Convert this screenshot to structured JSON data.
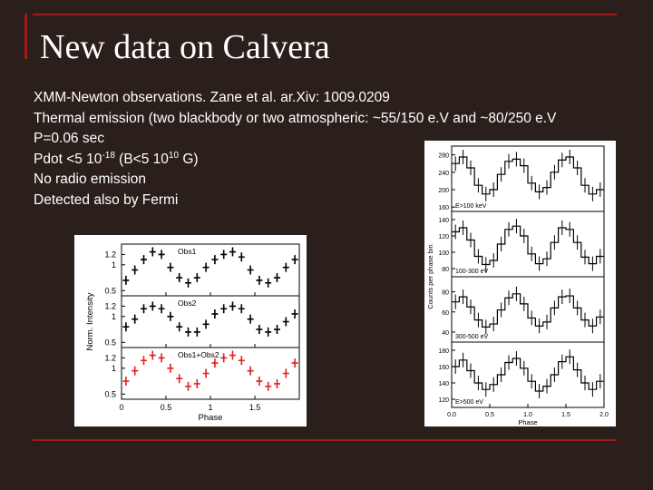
{
  "slide": {
    "title": "New data on Calvera",
    "lines": {
      "l1": "XMM-Newton observations. Zane et al. ar.Xiv: 1009.0209",
      "l2": "Thermal emission (two blackbody or two atmospheric: ~55/150 e.V and ~80/250 e.V",
      "l3": "P=0.06 sec",
      "l4_a": "Pdot <5 10",
      "l4_exp1": "-18",
      "l4_b": " (B<5 10",
      "l4_exp2": "10",
      "l4_c": " G)",
      "l5": "No radio emission",
      "l6": "Detected also by Fermi"
    }
  },
  "colors": {
    "background": "#2a1f1b",
    "accent_rule": "#a11a1a",
    "text": "#ffffff",
    "red_series": "#e02020"
  },
  "chart_data": [
    {
      "type": "scatter",
      "panels": [
        {
          "label": "Obs1",
          "color": "#000000",
          "x": [
            0.05,
            0.15,
            0.25,
            0.35,
            0.45,
            0.55,
            0.65,
            0.75,
            0.85,
            0.95,
            1.05,
            1.15,
            1.25,
            1.35,
            1.45,
            1.55,
            1.65,
            1.75,
            1.85,
            1.95
          ],
          "y": [
            0.7,
            0.9,
            1.1,
            1.25,
            1.2,
            0.95,
            0.75,
            0.65,
            0.75,
            0.95,
            1.1,
            1.2,
            1.25,
            1.15,
            0.9,
            0.7,
            0.65,
            0.75,
            0.95,
            1.1
          ]
        },
        {
          "label": "Obs2",
          "color": "#000000",
          "x": [
            0.05,
            0.15,
            0.25,
            0.35,
            0.45,
            0.55,
            0.65,
            0.75,
            0.85,
            0.95,
            1.05,
            1.15,
            1.25,
            1.35,
            1.45,
            1.55,
            1.65,
            1.75,
            1.85,
            1.95
          ],
          "y": [
            0.8,
            0.95,
            1.15,
            1.2,
            1.15,
            1.0,
            0.8,
            0.7,
            0.7,
            0.85,
            1.05,
            1.15,
            1.2,
            1.15,
            0.95,
            0.75,
            0.7,
            0.75,
            0.9,
            1.05
          ]
        },
        {
          "label": "Obs1+Obs2",
          "color": "#e02020",
          "x": [
            0.05,
            0.15,
            0.25,
            0.35,
            0.45,
            0.55,
            0.65,
            0.75,
            0.85,
            0.95,
            1.05,
            1.15,
            1.25,
            1.35,
            1.45,
            1.55,
            1.65,
            1.75,
            1.85,
            1.95
          ],
          "y": [
            0.75,
            0.95,
            1.15,
            1.25,
            1.2,
            1.0,
            0.8,
            0.65,
            0.7,
            0.9,
            1.1,
            1.2,
            1.25,
            1.15,
            0.95,
            0.75,
            0.65,
            0.7,
            0.9,
            1.1
          ]
        }
      ],
      "ytick_labels": [
        "1.2",
        "1",
        "0.5"
      ],
      "xticks": [
        0,
        0.5,
        1,
        1.5
      ],
      "xtick_labels": [
        "0",
        "0.5",
        "1",
        "1.5"
      ],
      "xlim": [
        0,
        2
      ],
      "ylim": [
        0.4,
        1.4
      ],
      "xlabel": "Phase",
      "ylabel": "Norm. Intensity"
    },
    {
      "type": "line",
      "panels": [
        {
          "label": "E>100 keV",
          "yticks": [
            160,
            200,
            240,
            280
          ],
          "ylim": [
            150,
            300
          ],
          "y": [
            260,
            275,
            250,
            210,
            190,
            200,
            235,
            265,
            270,
            255,
            215,
            195,
            205,
            240,
            268,
            275,
            250,
            210,
            190,
            200
          ]
        },
        {
          "label": "100-300 eV",
          "yticks": [
            80,
            100,
            120,
            140
          ],
          "ylim": [
            70,
            150
          ],
          "y": [
            125,
            130,
            115,
            95,
            85,
            90,
            110,
            128,
            132,
            120,
            98,
            86,
            92,
            112,
            130,
            128,
            112,
            94,
            86,
            95
          ]
        },
        {
          "label": "300-500 eV",
          "yticks": [
            40,
            60,
            80
          ],
          "ylim": [
            30,
            95
          ],
          "y": [
            70,
            75,
            65,
            52,
            45,
            48,
            62,
            74,
            78,
            68,
            54,
            46,
            50,
            64,
            75,
            76,
            64,
            52,
            46,
            55
          ]
        },
        {
          "label": "E>500 eV",
          "yticks": [
            120,
            140,
            160,
            180
          ],
          "ylim": [
            110,
            190
          ],
          "y": [
            160,
            168,
            155,
            140,
            132,
            138,
            150,
            165,
            170,
            158,
            142,
            130,
            136,
            150,
            166,
            172,
            156,
            140,
            132,
            142
          ]
        }
      ],
      "xticks": [
        0,
        0.5,
        1,
        1.5,
        2
      ],
      "xtick_labels": [
        "0.0",
        "0.5",
        "1.0",
        "1.5",
        "2.0"
      ],
      "xlim": [
        0,
        2
      ],
      "xlabel": "Phase",
      "ylabel": "Counts per phase bin"
    }
  ]
}
